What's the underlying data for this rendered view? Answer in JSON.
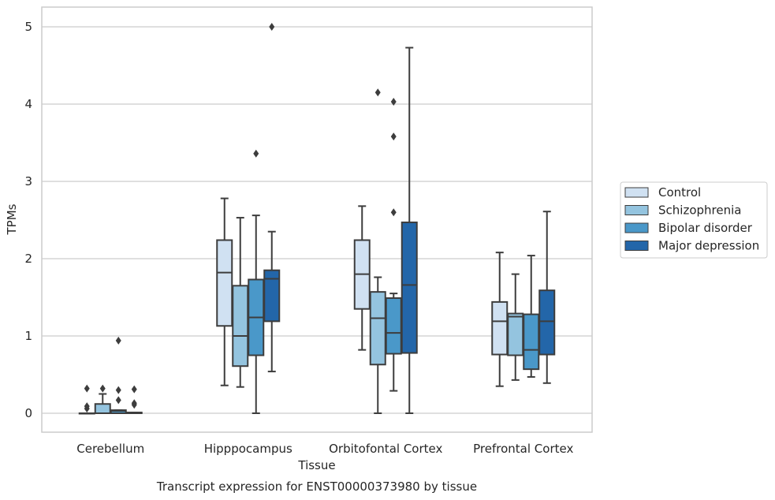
{
  "chart_data": {
    "type": "box",
    "caption": "Transcript expression for ENST00000373980 by tissue",
    "xlabel": "Tissue",
    "ylabel": "TPMs",
    "ylim": [
      -0.25,
      5.25
    ],
    "yticks": [
      0,
      1,
      2,
      3,
      4,
      5
    ],
    "grid": true,
    "legend_position": "right",
    "categories": [
      "Cerebellum",
      "Hipppocampus",
      "Orbitofontal Cortex",
      "Prefrontal Cortex"
    ],
    "series": [
      {
        "name": "Control",
        "color": "#d0e1f2",
        "boxes": [
          {
            "whislo": 0,
            "q1": 0,
            "med": 0,
            "q3": 0,
            "whishi": 0,
            "fliers": [
              0.32,
              0.09,
              0.06
            ]
          },
          {
            "whislo": 0.36,
            "q1": 1.13,
            "med": 1.82,
            "q3": 2.24,
            "whishi": 2.78,
            "fliers": []
          },
          {
            "whislo": 0.82,
            "q1": 1.35,
            "med": 1.8,
            "q3": 2.24,
            "whishi": 2.68,
            "fliers": []
          },
          {
            "whislo": 0.35,
            "q1": 0.76,
            "med": 1.19,
            "q3": 1.44,
            "whishi": 2.08,
            "fliers": []
          }
        ]
      },
      {
        "name": "Schizophrenia",
        "color": "#94c4df",
        "boxes": [
          {
            "whislo": 0,
            "q1": 0,
            "med": 0,
            "q3": 0.12,
            "whishi": 0.25,
            "fliers": [
              0.32
            ]
          },
          {
            "whislo": 0.34,
            "q1": 0.61,
            "med": 1.0,
            "q3": 1.65,
            "whishi": 2.53,
            "fliers": []
          },
          {
            "whislo": 0,
            "q1": 0.63,
            "med": 1.23,
            "q3": 1.57,
            "whishi": 1.76,
            "fliers": [
              4.15
            ]
          },
          {
            "whislo": 0.43,
            "q1": 0.75,
            "med": 1.25,
            "q3": 1.29,
            "whishi": 1.8,
            "fliers": []
          }
        ]
      },
      {
        "name": "Bipolar disorder",
        "color": "#4a98c9",
        "boxes": [
          {
            "whislo": 0,
            "q1": 0,
            "med": 0.03,
            "q3": 0.04,
            "whishi": 0.04,
            "fliers": [
              0.94,
              0.3,
              0.17
            ]
          },
          {
            "whislo": 0,
            "q1": 0.75,
            "med": 1.24,
            "q3": 1.73,
            "whishi": 2.56,
            "fliers": [
              3.36
            ]
          },
          {
            "whislo": 0.29,
            "q1": 0.77,
            "med": 1.04,
            "q3": 1.49,
            "whishi": 1.55,
            "fliers": [
              4.03,
              3.58,
              2.6
            ]
          },
          {
            "whislo": 0.47,
            "q1": 0.57,
            "med": 0.82,
            "q3": 1.28,
            "whishi": 2.04,
            "fliers": []
          }
        ]
      },
      {
        "name": "Major depression",
        "color": "#2366a9",
        "boxes": [
          {
            "whislo": 0,
            "q1": 0,
            "med": 0,
            "q3": 0.01,
            "whishi": 0.01,
            "fliers": [
              0.31,
              0.13,
              0.11
            ]
          },
          {
            "whislo": 0.54,
            "q1": 1.19,
            "med": 1.74,
            "q3": 1.85,
            "whishi": 2.35,
            "fliers": [
              5.0
            ]
          },
          {
            "whislo": 0,
            "q1": 0.78,
            "med": 1.66,
            "q3": 2.47,
            "whishi": 4.73,
            "fliers": []
          },
          {
            "whislo": 0.39,
            "q1": 0.76,
            "med": 1.19,
            "q3": 1.59,
            "whishi": 2.61,
            "fliers": []
          }
        ]
      }
    ]
  }
}
